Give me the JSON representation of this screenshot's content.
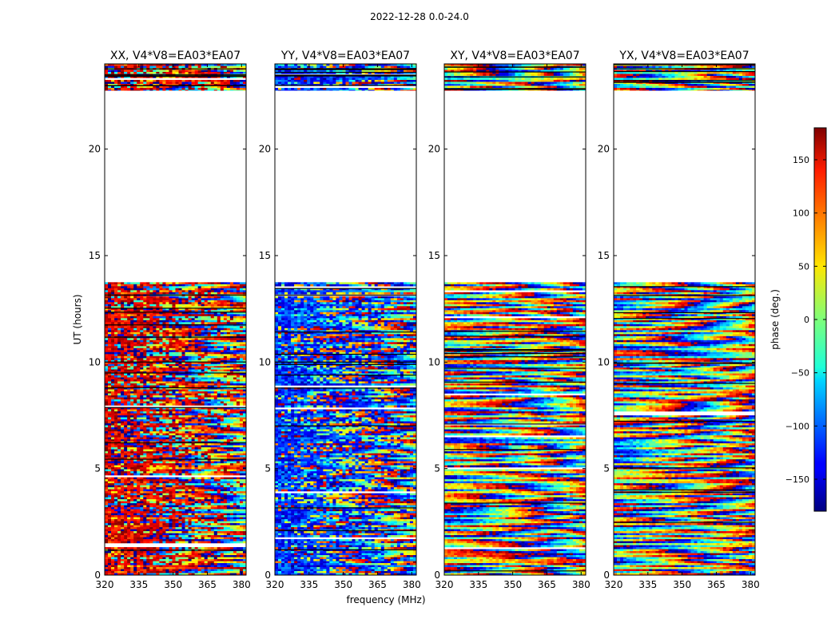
{
  "figure": {
    "suptitle": "2022-12-28 0.0-24.0"
  },
  "chart_data": {
    "type": "heatmap",
    "description_value": "phase (deg.)",
    "shared_axes": {
      "xlabel": "frequency (MHz)",
      "ylabel": "UT (hours)",
      "xlim": [
        320,
        382
      ],
      "ylim": [
        0,
        24
      ],
      "xticks": [
        320,
        335,
        350,
        365,
        380
      ],
      "yticks": [
        0,
        5,
        10,
        15,
        20
      ]
    },
    "panels": [
      {
        "title": "XX, V4*V8=EA03*EA07",
        "dominant_phase_deg": 150
      },
      {
        "title": "YY, V4*V8=EA03*EA07",
        "dominant_phase_deg": -120
      },
      {
        "title": "XY, V4*V8=EA03*EA07",
        "dominant_phase_deg": null
      },
      {
        "title": "YX, V4*V8=EA03*EA07",
        "dominant_phase_deg": null
      }
    ],
    "data_ranges_hours": [
      {
        "start": 0.0,
        "end": 9.75
      },
      {
        "start": 9.75,
        "end": 13.75
      },
      {
        "start": 22.75,
        "end": 24.0
      }
    ],
    "gap_hours": {
      "start": 13.75,
      "end": 22.75
    },
    "colorbar": {
      "label": "phase (deg.)",
      "range": [
        -180,
        180
      ],
      "ticks": [
        -150,
        -100,
        -50,
        0,
        50,
        100,
        150
      ],
      "tick_labels": [
        "−150",
        "−100",
        "−50",
        "0",
        "50",
        "100",
        "150"
      ],
      "colormap": "jet"
    }
  }
}
